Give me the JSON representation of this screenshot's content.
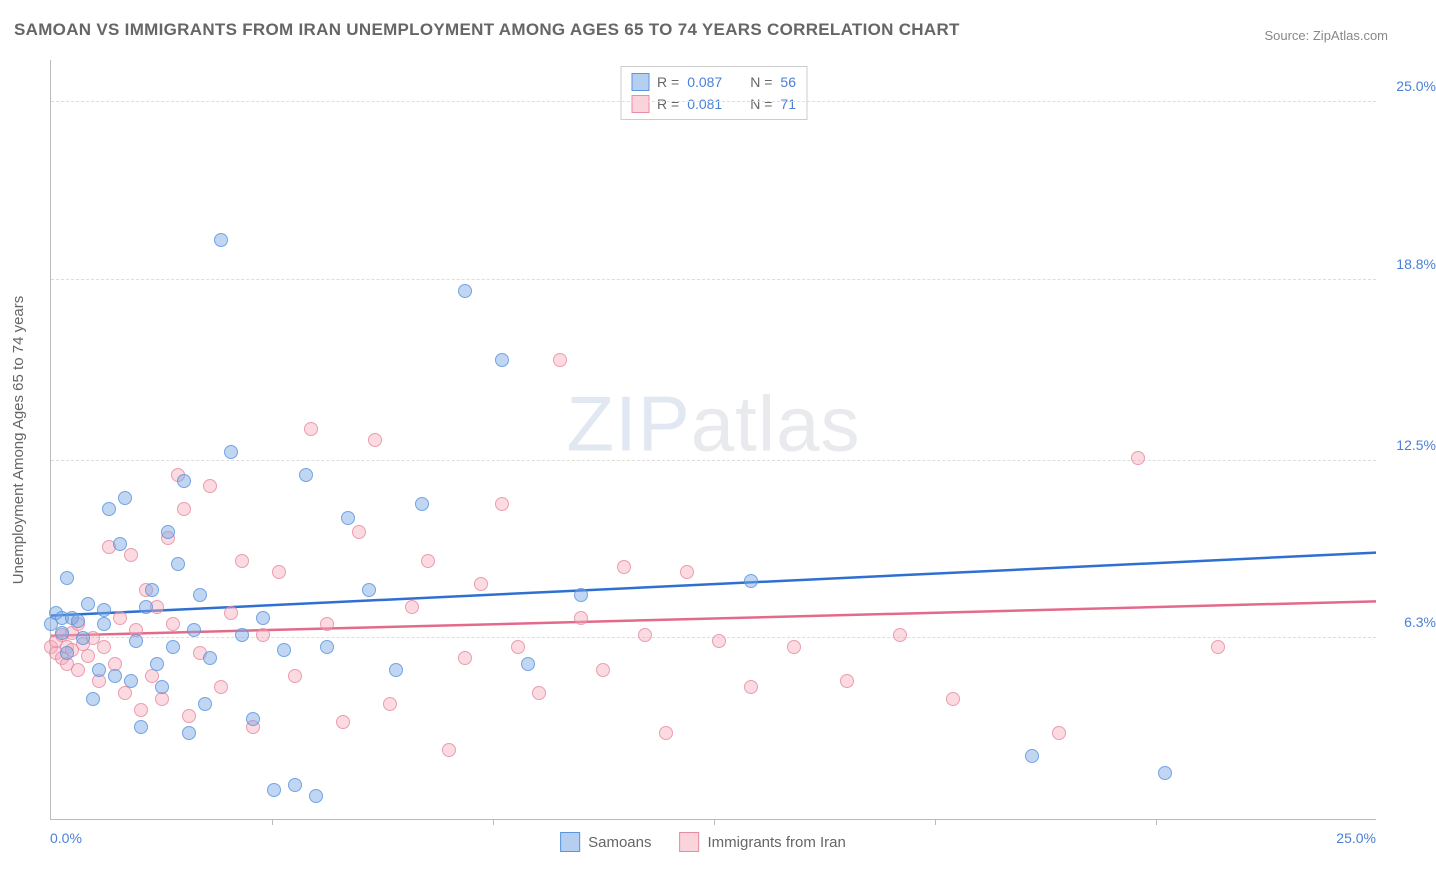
{
  "title": "SAMOAN VS IMMIGRANTS FROM IRAN UNEMPLOYMENT AMONG AGES 65 TO 74 YEARS CORRELATION CHART",
  "source": "Source: ZipAtlas.com",
  "y_axis_label": "Unemployment Among Ages 65 to 74 years",
  "watermark_bold": "ZIP",
  "watermark_thin": "atlas",
  "x_min": 0.0,
  "x_max": 25.0,
  "y_min": 0.0,
  "y_max": 26.5,
  "x_tick_min_label": "0.0%",
  "x_tick_max_label": "25.0%",
  "y_ticks": [
    {
      "v": 6.3,
      "label": "6.3%"
    },
    {
      "v": 12.5,
      "label": "12.5%"
    },
    {
      "v": 18.8,
      "label": "18.8%"
    },
    {
      "v": 25.0,
      "label": "25.0%"
    }
  ],
  "x_ticks_minor": [
    4.17,
    8.33,
    12.5,
    16.67,
    20.83
  ],
  "legend_top": [
    {
      "series": "a",
      "r": "0.087",
      "n": "56"
    },
    {
      "series": "b",
      "r": "0.081",
      "n": "71"
    }
  ],
  "legend_r_label": "R =",
  "legend_n_label": "N =",
  "legend_bottom": [
    {
      "series": "a",
      "label": "Samoans"
    },
    {
      "series": "b",
      "label": "Immigrants from Iran"
    }
  ],
  "series": {
    "a": {
      "color_fill": "rgba(120,168,230,0.55)",
      "color_stroke": "#5a95dd",
      "trend_color": "#2e6fd1",
      "trend_y_at_x0": 7.1,
      "trend_y_at_xmax": 9.3,
      "points": [
        [
          0.0,
          6.8
        ],
        [
          0.1,
          7.2
        ],
        [
          0.2,
          6.5
        ],
        [
          0.2,
          7.0
        ],
        [
          0.3,
          8.4
        ],
        [
          0.3,
          5.8
        ],
        [
          0.4,
          7.0
        ],
        [
          0.5,
          6.9
        ],
        [
          0.6,
          6.3
        ],
        [
          0.7,
          7.5
        ],
        [
          0.8,
          4.2
        ],
        [
          0.9,
          5.2
        ],
        [
          1.0,
          6.8
        ],
        [
          1.0,
          7.3
        ],
        [
          1.1,
          10.8
        ],
        [
          1.2,
          5.0
        ],
        [
          1.3,
          9.6
        ],
        [
          1.4,
          11.2
        ],
        [
          1.5,
          4.8
        ],
        [
          1.6,
          6.2
        ],
        [
          1.7,
          3.2
        ],
        [
          1.8,
          7.4
        ],
        [
          1.9,
          8.0
        ],
        [
          2.0,
          5.4
        ],
        [
          2.1,
          4.6
        ],
        [
          2.2,
          10.0
        ],
        [
          2.3,
          6.0
        ],
        [
          2.4,
          8.9
        ],
        [
          2.5,
          11.8
        ],
        [
          2.6,
          3.0
        ],
        [
          2.7,
          6.6
        ],
        [
          2.8,
          7.8
        ],
        [
          2.9,
          4.0
        ],
        [
          3.0,
          5.6
        ],
        [
          3.2,
          20.2
        ],
        [
          3.4,
          12.8
        ],
        [
          3.6,
          6.4
        ],
        [
          3.8,
          3.5
        ],
        [
          4.0,
          7.0
        ],
        [
          4.2,
          1.0
        ],
        [
          4.4,
          5.9
        ],
        [
          4.6,
          1.2
        ],
        [
          4.8,
          12.0
        ],
        [
          5.0,
          0.8
        ],
        [
          5.2,
          6.0
        ],
        [
          5.6,
          10.5
        ],
        [
          6.0,
          8.0
        ],
        [
          6.5,
          5.2
        ],
        [
          7.0,
          11.0
        ],
        [
          7.8,
          18.4
        ],
        [
          8.5,
          16.0
        ],
        [
          9.0,
          5.4
        ],
        [
          10.0,
          7.8
        ],
        [
          13.2,
          8.3
        ],
        [
          18.5,
          2.2
        ],
        [
          21.0,
          1.6
        ]
      ]
    },
    "b": {
      "color_fill": "rgba(245,170,185,0.5)",
      "color_stroke": "#e88ca0",
      "trend_color": "#e26b8b",
      "trend_y_at_x0": 6.4,
      "trend_y_at_xmax": 7.6,
      "points": [
        [
          0.0,
          6.0
        ],
        [
          0.1,
          5.8
        ],
        [
          0.1,
          6.2
        ],
        [
          0.2,
          5.6
        ],
        [
          0.2,
          6.4
        ],
        [
          0.3,
          5.4
        ],
        [
          0.3,
          6.0
        ],
        [
          0.4,
          5.9
        ],
        [
          0.4,
          6.5
        ],
        [
          0.5,
          5.2
        ],
        [
          0.5,
          6.8
        ],
        [
          0.6,
          6.1
        ],
        [
          0.7,
          5.7
        ],
        [
          0.8,
          6.3
        ],
        [
          0.9,
          4.8
        ],
        [
          1.0,
          6.0
        ],
        [
          1.1,
          9.5
        ],
        [
          1.2,
          5.4
        ],
        [
          1.3,
          7.0
        ],
        [
          1.4,
          4.4
        ],
        [
          1.5,
          9.2
        ],
        [
          1.6,
          6.6
        ],
        [
          1.7,
          3.8
        ],
        [
          1.8,
          8.0
        ],
        [
          1.9,
          5.0
        ],
        [
          2.0,
          7.4
        ],
        [
          2.1,
          4.2
        ],
        [
          2.2,
          9.8
        ],
        [
          2.3,
          6.8
        ],
        [
          2.4,
          12.0
        ],
        [
          2.5,
          10.8
        ],
        [
          2.6,
          3.6
        ],
        [
          2.8,
          5.8
        ],
        [
          3.0,
          11.6
        ],
        [
          3.2,
          4.6
        ],
        [
          3.4,
          7.2
        ],
        [
          3.6,
          9.0
        ],
        [
          3.8,
          3.2
        ],
        [
          4.0,
          6.4
        ],
        [
          4.3,
          8.6
        ],
        [
          4.6,
          5.0
        ],
        [
          4.9,
          13.6
        ],
        [
          5.2,
          6.8
        ],
        [
          5.5,
          3.4
        ],
        [
          5.8,
          10.0
        ],
        [
          6.1,
          13.2
        ],
        [
          6.4,
          4.0
        ],
        [
          6.8,
          7.4
        ],
        [
          7.1,
          9.0
        ],
        [
          7.5,
          2.4
        ],
        [
          7.8,
          5.6
        ],
        [
          8.1,
          8.2
        ],
        [
          8.5,
          11.0
        ],
        [
          8.8,
          6.0
        ],
        [
          9.2,
          4.4
        ],
        [
          9.6,
          16.0
        ],
        [
          10.0,
          7.0
        ],
        [
          10.4,
          5.2
        ],
        [
          10.8,
          8.8
        ],
        [
          11.2,
          6.4
        ],
        [
          11.6,
          3.0
        ],
        [
          12.0,
          8.6
        ],
        [
          12.6,
          6.2
        ],
        [
          13.2,
          4.6
        ],
        [
          14.0,
          6.0
        ],
        [
          15.0,
          4.8
        ],
        [
          16.0,
          6.4
        ],
        [
          17.0,
          4.2
        ],
        [
          19.0,
          3.0
        ],
        [
          20.5,
          12.6
        ],
        [
          22.0,
          6.0
        ]
      ]
    }
  }
}
